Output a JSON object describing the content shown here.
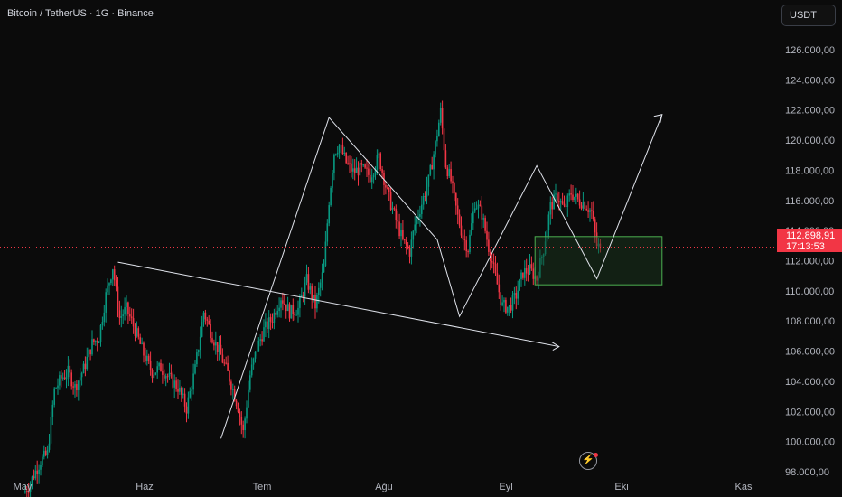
{
  "header": {
    "title": "Bitcoin / TetherUS · 1G · Binance",
    "currency_button": "USDT"
  },
  "price_badge": {
    "price": "112.898,91",
    "countdown": "17:13:53"
  },
  "colors": {
    "background": "#0b0b0b",
    "up_candle": "#089981",
    "down_candle": "#f23645",
    "drawing": "#e0e3eb",
    "zone_border": "#4caf50",
    "zone_fill": "#1b3a1e"
  },
  "icons": {
    "tool": "lightning-circle-icon"
  },
  "chart_data": {
    "type": "candlestick",
    "title": "Bitcoin / TetherUS · 1G · Binance",
    "y_axis_ticks": [
      "98.000,00",
      "100.000,00",
      "102.000,00",
      "104.000,00",
      "106.000,00",
      "108.000,00",
      "110.000,00",
      "112.000,00",
      "114.000,00",
      "116.000,00",
      "118.000,00",
      "120.000,00",
      "122.000,00",
      "124.000,00",
      "126.000,00"
    ],
    "y_tick_values": [
      98000,
      100000,
      102000,
      104000,
      106000,
      108000,
      110000,
      112000,
      114000,
      116000,
      118000,
      120000,
      122000,
      124000,
      126000
    ],
    "x_axis_labels": [
      "May",
      "Haz",
      "Tem",
      "Ağu",
      "Eyl",
      "Eki",
      "Kas"
    ],
    "ylim": [
      96000,
      128000
    ],
    "last_price": 112898.91,
    "close_path": [
      [
        0,
        96600
      ],
      [
        3,
        97000
      ],
      [
        6,
        97800
      ],
      [
        10,
        98700
      ],
      [
        14,
        99200
      ],
      [
        18,
        103400
      ],
      [
        22,
        104200
      ],
      [
        26,
        104600
      ],
      [
        30,
        103600
      ],
      [
        35,
        104800
      ],
      [
        40,
        106500
      ],
      [
        44,
        106900
      ],
      [
        48,
        109700
      ],
      [
        52,
        111600
      ],
      [
        56,
        108200
      ],
      [
        60,
        108800
      ],
      [
        65,
        107400
      ],
      [
        70,
        105800
      ],
      [
        75,
        104600
      ],
      [
        80,
        104900
      ],
      [
        85,
        104200
      ],
      [
        90,
        103600
      ],
      [
        95,
        102200
      ],
      [
        100,
        104800
      ],
      [
        105,
        108600
      ],
      [
        110,
        107000
      ],
      [
        115,
        105700
      ],
      [
        120,
        104200
      ],
      [
        125,
        102300
      ],
      [
        128,
        100600
      ],
      [
        132,
        104400
      ],
      [
        136,
        106200
      ],
      [
        140,
        107400
      ],
      [
        145,
        108200
      ],
      [
        150,
        109600
      ],
      [
        155,
        108600
      ],
      [
        160,
        108800
      ],
      [
        165,
        110700
      ],
      [
        170,
        109000
      ],
      [
        175,
        111500
      ],
      [
        178,
        116000
      ],
      [
        181,
        119200
      ],
      [
        184,
        119700
      ],
      [
        188,
        118500
      ],
      [
        192,
        117900
      ],
      [
        197,
        118100
      ],
      [
        202,
        117600
      ],
      [
        207,
        118900
      ],
      [
        212,
        116500
      ],
      [
        217,
        114700
      ],
      [
        221,
        113300
      ],
      [
        225,
        112600
      ],
      [
        228,
        114400
      ],
      [
        232,
        115800
      ],
      [
        236,
        117300
      ],
      [
        240,
        119700
      ],
      [
        243,
        121900
      ],
      [
        246,
        118400
      ],
      [
        249,
        117300
      ],
      [
        253,
        114900
      ],
      [
        256,
        113600
      ],
      [
        259,
        112800
      ],
      [
        263,
        115900
      ],
      [
        267,
        115100
      ],
      [
        271,
        112900
      ],
      [
        275,
        110900
      ],
      [
        279,
        109000
      ],
      [
        283,
        108900
      ],
      [
        287,
        109700
      ],
      [
        291,
        111200
      ],
      [
        295,
        111400
      ],
      [
        299,
        110800
      ],
      [
        303,
        112800
      ],
      [
        307,
        115600
      ],
      [
        311,
        116300
      ],
      [
        315,
        115400
      ],
      [
        319,
        116500
      ],
      [
        323,
        116000
      ],
      [
        327,
        115800
      ],
      [
        331,
        115200
      ],
      [
        334,
        113000
      ],
      [
        336,
        112900
      ]
    ],
    "annotations": {
      "trendline": [
        [
          55,
          111900
        ],
        [
          312,
          106300
        ]
      ],
      "zigzag": [
        [
          115,
          100200
        ],
        [
          178,
          121500
        ],
        [
          241,
          113400
        ],
        [
          254,
          108300
        ],
        [
          299,
          118300
        ],
        [
          334,
          110800
        ],
        [
          372,
          121700
        ]
      ],
      "zone": {
        "t0": 298,
        "t1": 372,
        "top": 113600,
        "bottom": 110400
      }
    }
  }
}
